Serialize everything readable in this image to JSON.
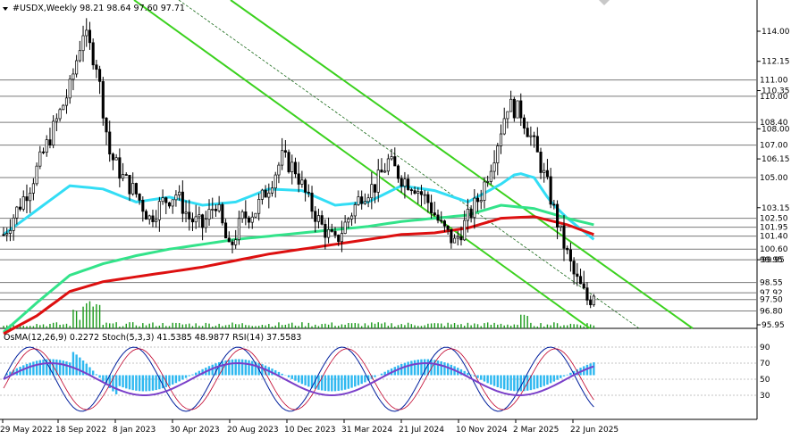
{
  "header": {
    "symbol_line": "#USDX,Weekly  98.21 98.64 97.60 97.71",
    "indicators_line": "OsMA(12,26,9) 0.2272  Stoch(5,3,3) 41.5385 48.9877  RSI(14) 37.5583"
  },
  "colors": {
    "background": "#ffffff",
    "candle": "#000000",
    "level_line": "#7a7a7a",
    "ma_cyan": "#33ddf5",
    "ma_green": "#33e38a",
    "ma_red": "#dd1010",
    "channel": "#3bd11e",
    "volume": "#1a9a1a",
    "osma": "#2eb8f0",
    "stoch_main": "#001e9c",
    "stoch_signal": "#c0002a",
    "rsi": "#7a3fc9"
  },
  "chart_data": {
    "type": "line",
    "title": "#USDX,Weekly",
    "ohlc_last": {
      "open": 98.21,
      "high": 98.64,
      "low": 97.6,
      "close": 97.71
    },
    "y_axis_ticks": [
      "114.00",
      "112.15",
      "110.35",
      "108.00",
      "106.15",
      "103.15",
      "99.95",
      "95.95"
    ],
    "ylim": [
      95.2,
      115.5
    ],
    "x_tick_labels": [
      "29 May 2022",
      "18 Sep 2022",
      "8 Jan 2023",
      "30 Apr 2023",
      "20 Aug 2023",
      "10 Dec 2023",
      "31 Mar 2024",
      "21 Jul 2024",
      "10 Nov 2024",
      "2 Mar 2025",
      "22 Jun 2025"
    ],
    "price_levels": [
      "111.00",
      "110.00",
      "108.40",
      "107.00",
      "105.00",
      "102.50",
      "101.95",
      "101.40",
      "100.60",
      "99.95",
      "98.55",
      "97.92",
      "97.50",
      "96.80"
    ],
    "series": [
      {
        "name": "price",
        "x": [
          0,
          4,
          8,
          12,
          16,
          20,
          24,
          28,
          32,
          36,
          40,
          44,
          48,
          52,
          56,
          60,
          64,
          68,
          72,
          76,
          80,
          84,
          88,
          92,
          96,
          100,
          104,
          108,
          112,
          116,
          120,
          124,
          128,
          132,
          136,
          140,
          144,
          148,
          152,
          156,
          160,
          164,
          168,
          172,
          176,
          178
        ],
        "values": [
          101.5,
          103.0,
          104.5,
          106.5,
          108.5,
          110.5,
          114.0,
          112.0,
          106.5,
          105.0,
          104.0,
          102.5,
          103.5,
          104.0,
          102.5,
          102.0,
          103.5,
          100.5,
          102.5,
          103.0,
          104.5,
          106.2,
          105.5,
          103.5,
          102.0,
          101.0,
          102.5,
          104.0,
          104.5,
          106.0,
          105.0,
          104.5,
          103.5,
          102.0,
          101.0,
          102.5,
          104.0,
          106.5,
          109.5,
          109.0,
          107.0,
          104.5,
          101.5,
          99.0,
          97.5,
          97.7
        ]
      },
      {
        "name": "ma_cyan",
        "x": [
          0,
          10,
          20,
          30,
          40,
          50,
          60,
          70,
          80,
          90,
          100,
          110,
          120,
          130,
          140,
          150,
          155,
          160,
          165,
          170,
          178
        ],
        "values": [
          101.5,
          103.0,
          104.5,
          104.3,
          103.5,
          103.8,
          103.3,
          103.5,
          104.3,
          104.2,
          103.3,
          103.5,
          104.5,
          104.2,
          103.5,
          104.6,
          105.3,
          105.0,
          103.5,
          102.5,
          101.2
        ]
      },
      {
        "name": "ma_green",
        "x": [
          0,
          10,
          20,
          30,
          40,
          50,
          60,
          70,
          80,
          90,
          100,
          110,
          120,
          130,
          140,
          150,
          160,
          170,
          178
        ],
        "values": [
          95.5,
          97.3,
          99.0,
          99.7,
          100.2,
          100.6,
          100.9,
          101.2,
          101.4,
          101.6,
          101.8,
          102.0,
          102.3,
          102.5,
          102.7,
          103.3,
          103.1,
          102.5,
          102.1
        ]
      },
      {
        "name": "ma_red",
        "x": [
          0,
          10,
          20,
          30,
          40,
          50,
          60,
          70,
          80,
          90,
          100,
          110,
          120,
          130,
          140,
          150,
          160,
          170,
          178
        ],
        "values": [
          95.4,
          96.5,
          98.0,
          98.6,
          98.9,
          99.2,
          99.5,
          99.9,
          100.3,
          100.6,
          100.9,
          101.2,
          101.5,
          101.6,
          101.9,
          102.5,
          102.6,
          102.1,
          101.5
        ]
      }
    ],
    "grid": false
  }
}
